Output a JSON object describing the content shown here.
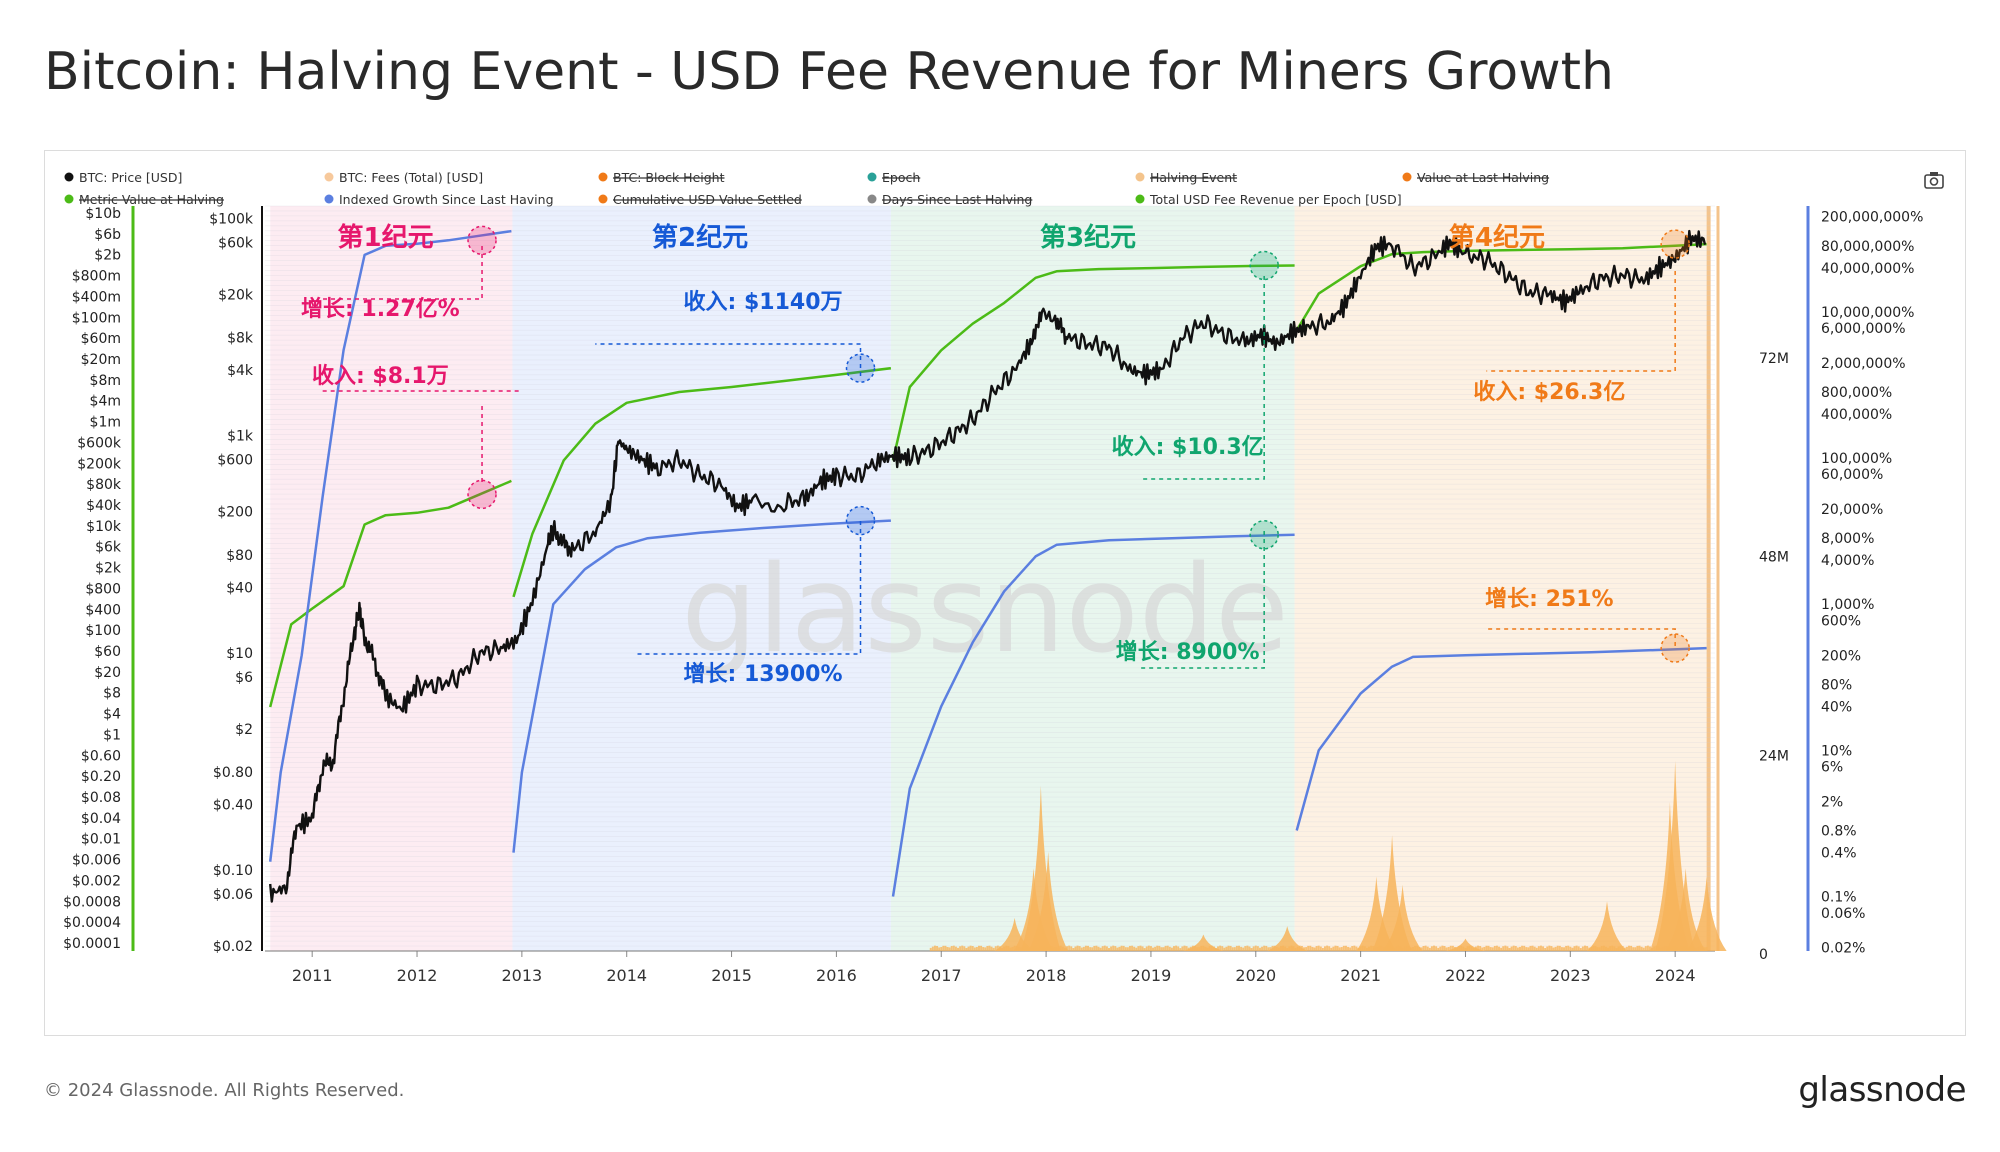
{
  "title": "Bitcoin: Halving Event - USD Fee Revenue for Miners Growth",
  "footer": {
    "copyright": "© 2024 Glassnode. All Rights Reserved.",
    "logo": "glassnode"
  },
  "watermark": "glassnode",
  "camera_icon": "camera-icon",
  "colors": {
    "price": "#111111",
    "fees": "#f7b45a",
    "metric": "#4cbb17",
    "growth": "#5b7fe0",
    "halving": "#f4c48c",
    "epoch1": "#e6176c",
    "epoch2": "#1559d6",
    "epoch3": "#10a56e",
    "epoch4": "#f07a18"
  },
  "chart_data": {
    "type": "line",
    "legend": [
      {
        "label": "BTC: Price [USD]",
        "color": "#111111",
        "struck": false
      },
      {
        "label": "BTC: Fees (Total) [USD]",
        "color": "#f7c99c",
        "struck": false
      },
      {
        "label": "BTC: Block Height",
        "color": "#f07a18",
        "struck": true
      },
      {
        "label": "Epoch",
        "color": "#2aa198",
        "struck": true
      },
      {
        "label": "Halving Event",
        "color": "#f4c48c",
        "struck": true
      },
      {
        "label": "Value at Last Halving",
        "color": "#f07a18",
        "struck": true
      },
      {
        "label": "Metric Value at Halving",
        "color": "#4cbb17",
        "struck": true
      },
      {
        "label": "Indexed Growth Since Last Having",
        "color": "#5b7fe0",
        "struck": false
      },
      {
        "label": "Cumulative USD Value Settled",
        "color": "#f07a18",
        "struck": true
      },
      {
        "label": "Days Since Last Halving",
        "color": "#888888",
        "struck": true
      },
      {
        "label": "Total USD Fee Revenue per Epoch [USD]",
        "color": "#4cbb17",
        "struck": false
      }
    ],
    "x_ticks": [
      "2011",
      "2012",
      "2013",
      "2014",
      "2015",
      "2016",
      "2017",
      "2018",
      "2019",
      "2020",
      "2021",
      "2022",
      "2023",
      "2024"
    ],
    "axis_left_outer": [
      "$10b",
      "$6b",
      "$2b",
      "$800m",
      "$400m",
      "$100m",
      "$60m",
      "$20m",
      "$8m",
      "$4m",
      "$1m",
      "$600k",
      "$200k",
      "$80k",
      "$40k",
      "$10k",
      "$6k",
      "$2k",
      "$800",
      "$400",
      "$100",
      "$60",
      "$20",
      "$8",
      "$4",
      "$1",
      "$0.60",
      "$0.20",
      "$0.08",
      "$0.04",
      "$0.01",
      "$0.006",
      "$0.002",
      "$0.0008",
      "$0.0004",
      "$0.0001"
    ],
    "axis_left_price": [
      "$100k",
      "$60k",
      "$20k",
      "$8k",
      "$4k",
      "$1k",
      "$600",
      "$200",
      "$80",
      "$40",
      "$10",
      "$6",
      "$2",
      "$0.80",
      "$0.40",
      "$0.10",
      "$0.06",
      "$0.02"
    ],
    "axis_right_fees": [
      "72M",
      "48M",
      "24M",
      "0"
    ],
    "axis_right_growth": [
      "200,000,000%",
      "80,000,000%",
      "40,000,000%",
      "10,000,000%",
      "6,000,000%",
      "2,000,000%",
      "800,000%",
      "400,000%",
      "100,000%",
      "60,000%",
      "20,000%",
      "8,000%",
      "4,000%",
      "1,000%",
      "600%",
      "200%",
      "80%",
      "40%",
      "10%",
      "6%",
      "2%",
      "0.8%",
      "0.4%",
      "0.1%",
      "0.06%",
      "0.02%"
    ],
    "epochs": [
      {
        "label": "第1纪元",
        "start": 2010.6,
        "end": 2012.91,
        "color": "#e6176c",
        "bg": "#fdecf2",
        "growth_label": "增长: 1.27亿%",
        "revenue_label": "收入: $8.1万"
      },
      {
        "label": "第2纪元",
        "start": 2012.91,
        "end": 2016.52,
        "color": "#1559d6",
        "bg": "#eaf0fd",
        "growth_label": "增长: 13900%",
        "revenue_label": "收入: $1140万"
      },
      {
        "label": "第3纪元",
        "start": 2016.52,
        "end": 2020.37,
        "color": "#10a56e",
        "bg": "#e8f6ee",
        "growth_label": "增长: 8900%",
        "revenue_label": "收入: $10.3亿"
      },
      {
        "label": "第4纪元",
        "start": 2020.37,
        "end": 2024.3,
        "color": "#f07a18",
        "bg": "#fdf1e3",
        "growth_label": "增长: 251%",
        "revenue_label": "收入: $26.3亿"
      }
    ],
    "price": {
      "scale": "log",
      "x": [
        2010.6,
        2010.75,
        2010.85,
        2011.0,
        2011.1,
        2011.2,
        2011.3,
        2011.4,
        2011.45,
        2011.5,
        2011.6,
        2011.7,
        2011.85,
        2012.0,
        2012.2,
        2012.4,
        2012.6,
        2012.8,
        2012.95,
        2013.1,
        2013.25,
        2013.3,
        2013.4,
        2013.5,
        2013.7,
        2013.85,
        2013.92,
        2014.0,
        2014.15,
        2014.3,
        2014.5,
        2014.7,
        2014.9,
        2015.05,
        2015.2,
        2015.5,
        2015.7,
        2015.85,
        2016.0,
        2016.2,
        2016.4,
        2016.55,
        2016.7,
        2016.9,
        2017.1,
        2017.3,
        2017.5,
        2017.7,
        2017.85,
        2017.96,
        2018.1,
        2018.2,
        2018.4,
        2018.6,
        2018.8,
        2018.95,
        2019.1,
        2019.3,
        2019.5,
        2019.7,
        2019.9,
        2020.05,
        2020.2,
        2020.35,
        2020.5,
        2020.7,
        2020.85,
        2021.0,
        2021.15,
        2021.3,
        2021.5,
        2021.7,
        2021.85,
        2022.0,
        2022.2,
        2022.4,
        2022.6,
        2022.8,
        2022.95,
        2023.1,
        2023.3,
        2023.5,
        2023.7,
        2023.85,
        2024.0,
        2024.15,
        2024.3
      ],
      "y": [
        0.06,
        0.07,
        0.25,
        0.3,
        0.9,
        1.0,
        4,
        15,
        25,
        14,
        8,
        4,
        3,
        5,
        5,
        6,
        10,
        11,
        13,
        30,
        100,
        140,
        100,
        90,
        130,
        250,
        900,
        750,
        600,
        500,
        600,
        430,
        350,
        220,
        250,
        240,
        260,
        380,
        430,
        420,
        600,
        650,
        620,
        750,
        1000,
        1400,
        2500,
        4000,
        7000,
        14000,
        11000,
        8000,
        7000,
        6500,
        4000,
        3700,
        4000,
        8000,
        11000,
        8500,
        7200,
        8500,
        7000,
        9000,
        10000,
        11000,
        16000,
        30000,
        55000,
        58000,
        35000,
        44000,
        60000,
        46000,
        42000,
        30000,
        21000,
        20000,
        17000,
        22000,
        28000,
        30000,
        27000,
        35000,
        43000,
        65000,
        62000
      ]
    },
    "metric_revenue_per_epoch": {
      "scale": "log",
      "unit": "USD",
      "x": [
        2010.6,
        2010.8,
        2011.0,
        2011.3,
        2011.5,
        2011.7,
        2012.0,
        2012.3,
        2012.6,
        2012.9,
        2012.92,
        2013.1,
        2013.4,
        2013.7,
        2014.0,
        2014.5,
        2015.0,
        2015.5,
        2016.0,
        2016.52,
        2016.54,
        2016.7,
        2017.0,
        2017.3,
        2017.6,
        2017.9,
        2018.1,
        2018.5,
        2019.0,
        2019.5,
        2020.0,
        2020.37,
        2020.39,
        2020.6,
        2021.0,
        2021.3,
        2021.6,
        2022.0,
        2022.5,
        2023.0,
        2023.5,
        2024.0,
        2024.3
      ],
      "y": [
        4,
        150,
        300,
        800,
        12000,
        18000,
        20000,
        25000,
        45000,
        81000,
        500,
        8000,
        200000,
        1000000,
        2500000,
        4000000,
        5000000,
        6500000,
        8500000,
        11400000,
        200000,
        5000000,
        25000000,
        80000000,
        200000000,
        600000000,
        800000000,
        880000000,
        920000000,
        970000000,
        1010000000,
        1030000000,
        60000000,
        300000000,
        1000000000,
        1700000000,
        1850000000,
        1950000000,
        2030000000,
        2100000000,
        2200000000,
        2450000000,
        2630000000
      ]
    },
    "indexed_growth": {
      "scale": "log",
      "unit": "%",
      "x": [
        2010.6,
        2010.7,
        2010.9,
        2011.1,
        2011.3,
        2011.5,
        2011.7,
        2012.0,
        2012.3,
        2012.6,
        2012.9,
        2012.92,
        2013.0,
        2013.3,
        2013.6,
        2013.9,
        2014.2,
        2014.7,
        2015.3,
        2015.9,
        2016.52,
        2016.54,
        2016.7,
        2017.0,
        2017.3,
        2017.6,
        2017.9,
        2018.1,
        2018.6,
        2019.2,
        2019.8,
        2020.37,
        2020.39,
        2020.6,
        2021.0,
        2021.3,
        2021.5,
        2022.0,
        2022.6,
        2023.2,
        2023.8,
        2024.3
      ],
      "y": [
        0.3,
        5,
        200,
        30000,
        3000000,
        60000000,
        80000000,
        85000000,
        95000000,
        110000000,
        127000000,
        0.4,
        5,
        1000,
        3000,
        6000,
        8000,
        9500,
        11000,
        12500,
        13900,
        0.1,
        3,
        40,
        300,
        1500,
        4500,
        6500,
        7500,
        8000,
        8500,
        8900,
        0.8,
        10,
        60,
        140,
        190,
        200,
        210,
        220,
        235,
        251
      ]
    },
    "fees_total": {
      "unit": "USD",
      "scale": "linear",
      "max_shown": 72000000,
      "spikes": [
        {
          "x": 2017.95,
          "y": 20000000
        },
        {
          "x": 2017.88,
          "y": 10000000
        },
        {
          "x": 2018.02,
          "y": 12000000
        },
        {
          "x": 2017.7,
          "y": 4000000
        },
        {
          "x": 2019.5,
          "y": 2000000
        },
        {
          "x": 2020.3,
          "y": 3000000
        },
        {
          "x": 2021.3,
          "y": 14000000
        },
        {
          "x": 2021.15,
          "y": 9000000
        },
        {
          "x": 2021.4,
          "y": 8000000
        },
        {
          "x": 2022.0,
          "y": 1500000
        },
        {
          "x": 2023.35,
          "y": 6000000
        },
        {
          "x": 2023.95,
          "y": 18000000
        },
        {
          "x": 2024.0,
          "y": 23000000
        },
        {
          "x": 2024.1,
          "y": 10000000
        },
        {
          "x": 2024.3,
          "y": 9000000
        }
      ]
    },
    "markers": [
      {
        "epoch": 1,
        "on": "growth",
        "x": 2012.62,
        "y": 95000000
      },
      {
        "epoch": 1,
        "on": "metric",
        "x": 2012.62,
        "y": 45000
      },
      {
        "epoch": 2,
        "on": "metric",
        "x": 2016.23,
        "y": 11400000
      },
      {
        "epoch": 2,
        "on": "growth",
        "x": 2016.23,
        "y": 13900
      },
      {
        "epoch": 3,
        "on": "metric",
        "x": 2020.08,
        "y": 1030000000
      },
      {
        "epoch": 3,
        "on": "growth",
        "x": 2020.08,
        "y": 8900
      },
      {
        "epoch": 4,
        "on": "metric",
        "x": 2024.0,
        "y": 2630000000
      },
      {
        "epoch": 4,
        "on": "growth",
        "x": 2024.0,
        "y": 251
      }
    ]
  }
}
